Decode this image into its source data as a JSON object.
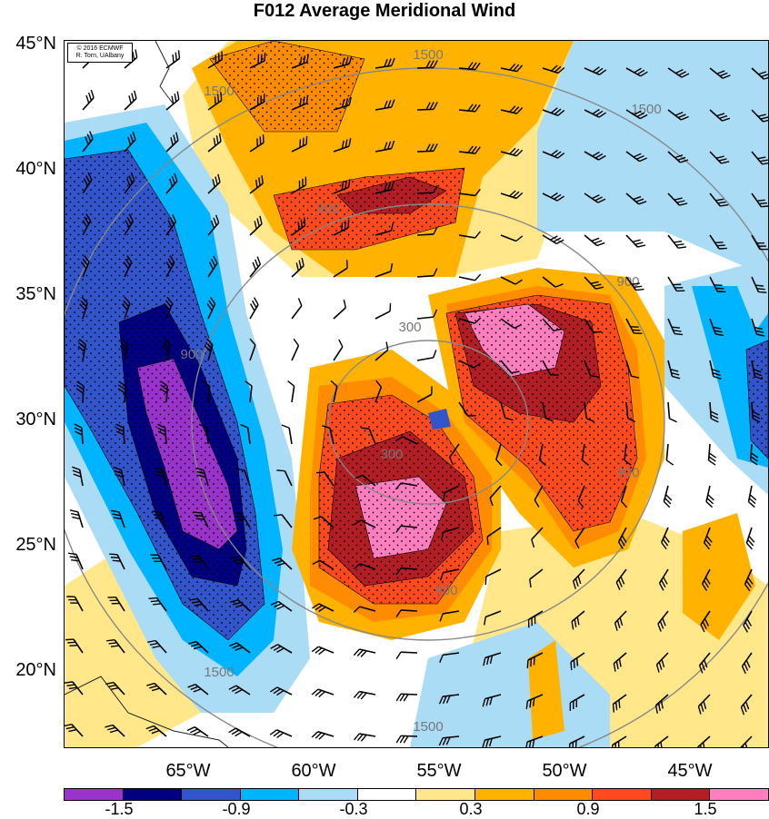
{
  "chart_data": {
    "type": "heatmap",
    "title": "F012 Average Meridional Wind",
    "copyright": [
      "© 2016 ECMWF",
      "R. Torn, UAlbany"
    ],
    "lat_ticks": [
      "45°N",
      "40°N",
      "35°N",
      "30°N",
      "25°N",
      "20°N"
    ],
    "lon_ticks": [
      "65°W",
      "60°W",
      "55°W",
      "50°W",
      "45°W"
    ],
    "xlim": [
      -69.5,
      -41.5
    ],
    "ylim": [
      16.8,
      45
    ],
    "colorbar": {
      "labels": [
        "-1.5",
        "-0.9",
        "-0.3",
        "0.3",
        "0.9",
        "1.5"
      ],
      "colors": [
        "#9933cc",
        "#000080",
        "#3355cc",
        "#00b4ff",
        "#aadcf5",
        "#ffffff",
        "#ffe78a",
        "#ffb300",
        "#ff8c00",
        "#ff4a1e",
        "#b11e23",
        "#ff7ec0"
      ]
    },
    "contour_labels": [
      "1500",
      "1500",
      "1500",
      "1500",
      "1500",
      "900",
      "900",
      "900",
      "900",
      "900",
      "300",
      "300"
    ]
  }
}
